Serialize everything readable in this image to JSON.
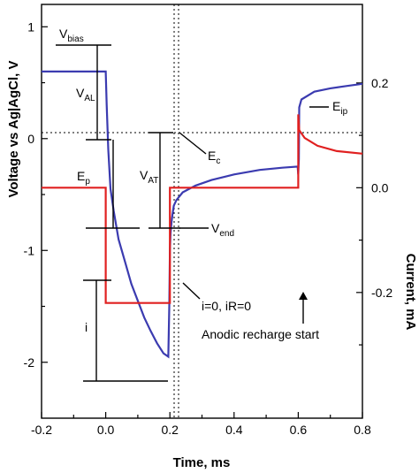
{
  "chart_data": {
    "type": "line",
    "xlabel": "Time, ms",
    "ylabel_left": "Voltage vs Ag|AgCl, V",
    "ylabel_right": "Current, mA",
    "xlim": [
      -0.2,
      0.8
    ],
    "ylim_left": [
      -2.5,
      1.2
    ],
    "ylim_right": [
      -0.44,
      0.35
    ],
    "x_ticks": [
      "-0.2",
      "0.0",
      "0.2",
      "0.4",
      "0.6",
      "0.8"
    ],
    "y_ticks_left": [
      "1",
      "0",
      "-1",
      "-2"
    ],
    "y_ticks_right": [
      "0.2",
      "0.0",
      "-0.2"
    ],
    "colors": {
      "voltage": "#3b3bb0",
      "current": "#e02020"
    },
    "series": [
      {
        "axis": "left",
        "color": "#3b3bb0",
        "x": [
          -0.2,
          0.0,
          0.003,
          0.008,
          0.015,
          0.025,
          0.04,
          0.06,
          0.08,
          0.1,
          0.12,
          0.14,
          0.16,
          0.18,
          0.195,
          0.198,
          0.2,
          0.202,
          0.205,
          0.208,
          0.212,
          0.22,
          0.24,
          0.28,
          0.33,
          0.4,
          0.48,
          0.55,
          0.598,
          0.6,
          0.602,
          0.603,
          0.61,
          0.65,
          0.7,
          0.75,
          0.8
        ],
        "values": [
          0.6,
          0.6,
          0.3,
          -0.1,
          -0.45,
          -0.65,
          -0.9,
          -1.1,
          -1.3,
          -1.45,
          -1.6,
          -1.72,
          -1.83,
          -1.92,
          -1.95,
          -1.5,
          -1.0,
          -0.85,
          -0.75,
          -0.68,
          -0.6,
          -0.55,
          -0.48,
          -0.42,
          -0.37,
          -0.32,
          -0.28,
          -0.26,
          -0.25,
          -0.32,
          -0.18,
          0.28,
          0.35,
          0.42,
          0.45,
          0.47,
          0.49
        ]
      },
      {
        "axis": "right",
        "color": "#e02020",
        "x": [
          -0.2,
          0.0,
          0.0,
          0.2,
          0.2,
          0.6,
          0.6,
          0.603,
          0.62,
          0.66,
          0.72,
          0.8
        ],
        "values": [
          0.0,
          0.0,
          -0.22,
          -0.22,
          0.0,
          0.0,
          0.14,
          0.11,
          0.095,
          0.08,
          0.07,
          0.065
        ]
      }
    ],
    "annotations": {
      "v_bias": {
        "main": "V",
        "sub": "bias"
      },
      "v_al": {
        "main": "V",
        "sub": "AL"
      },
      "e_p": {
        "main": "E",
        "sub": "p"
      },
      "v_at": {
        "main": "V",
        "sub": "AT"
      },
      "e_c": {
        "main": "E",
        "sub": "c"
      },
      "v_end": {
        "main": "V",
        "sub": "end"
      },
      "e_ip": {
        "main": "E",
        "sub": "ip"
      },
      "i": "i",
      "i_zero": "i=0, iR=0",
      "anodic": "Anodic recharge start"
    }
  }
}
